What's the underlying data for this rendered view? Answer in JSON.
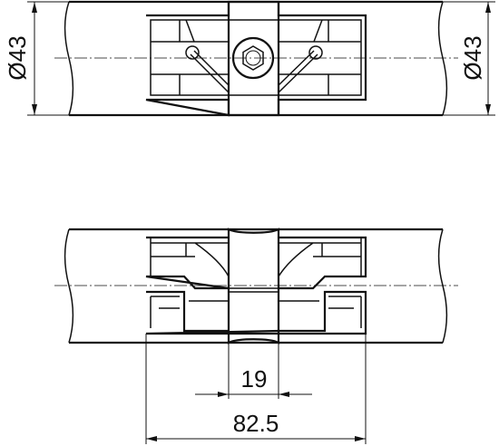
{
  "drawing": {
    "top_view": {
      "left_diameter": "Ø43",
      "right_diameter": "Ø43"
    },
    "front_view": {
      "center_width": "19",
      "overall_width": "82.5"
    }
  }
}
